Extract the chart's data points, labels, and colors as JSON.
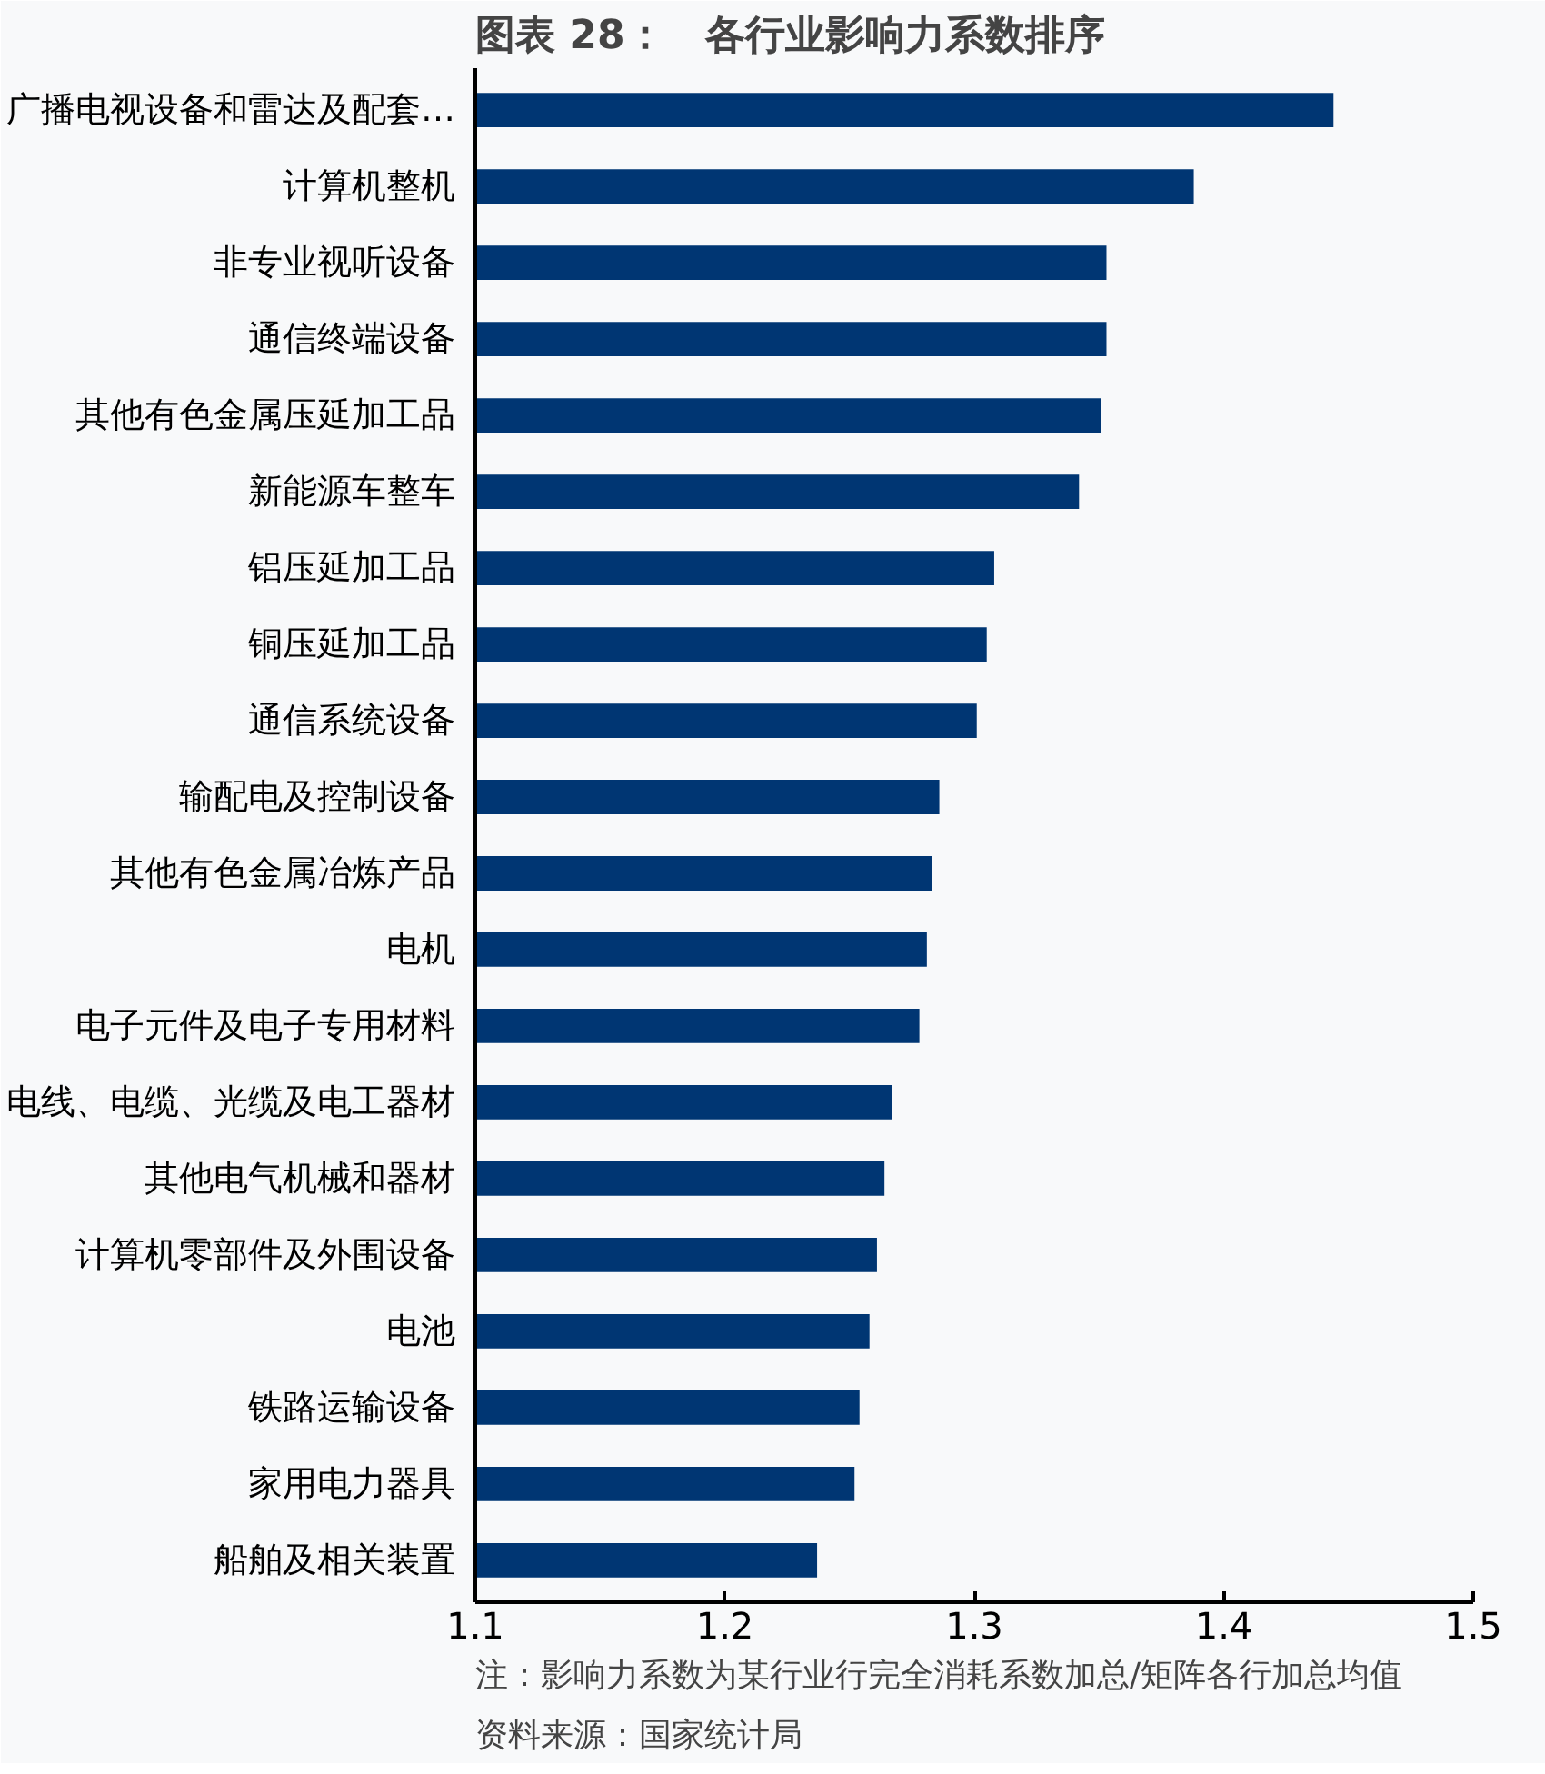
{
  "chart_data": {
    "type": "bar",
    "orientation": "horizontal",
    "title": "图表 28：　各行业影响力系数排序",
    "categories": [
      "广播电视设备和雷达及配套…",
      "计算机整机",
      "非专业视听设备",
      "通信终端设备",
      "其他有色金属压延加工品",
      "新能源车整车",
      "铝压延加工品",
      "铜压延加工品",
      "通信系统设备",
      "输配电及控制设备",
      "其他有色金属冶炼产品",
      "电机",
      "电子元件及电子专用材料",
      "电线、电缆、光缆及电工器材",
      "其他电气机械和器材",
      "计算机零部件及外围设备",
      "电池",
      "铁路运输设备",
      "家用电力器具",
      "船舶及相关装置"
    ],
    "values": [
      1.444,
      1.388,
      1.353,
      1.353,
      1.351,
      1.342,
      1.308,
      1.305,
      1.301,
      1.286,
      1.283,
      1.281,
      1.278,
      1.267,
      1.264,
      1.261,
      1.258,
      1.254,
      1.252,
      1.237
    ],
    "color": "#003673",
    "xlim": [
      1.1,
      1.5
    ],
    "xticks": [
      1.1,
      1.2,
      1.3,
      1.4,
      1.5
    ],
    "grid": false,
    "annotations": [
      "注：影响力系数为某行业行完全消耗系数加总/矩阵各行加总均值",
      "资料来源：国家统计局"
    ]
  }
}
